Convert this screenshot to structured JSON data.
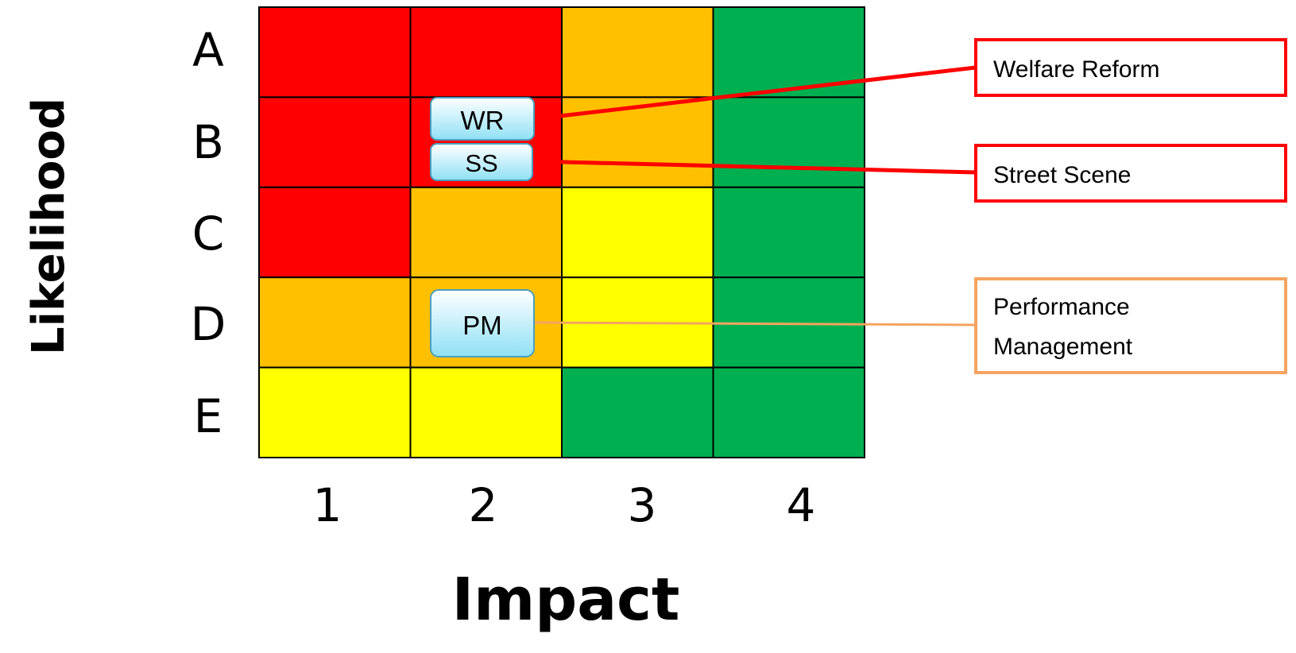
{
  "matrix": {
    "y_axis_title": "Likelihood",
    "x_axis_title": "Impact",
    "rows": [
      "A",
      "B",
      "C",
      "D",
      "E"
    ],
    "columns": [
      "1",
      "2",
      "3",
      "4"
    ],
    "ratings": [
      [
        "red",
        "red",
        "amber",
        "green"
      ],
      [
        "red",
        "red",
        "amber",
        "green"
      ],
      [
        "red",
        "amber",
        "yellow",
        "green"
      ],
      [
        "amber",
        "amber",
        "yellow",
        "green"
      ],
      [
        "yellow",
        "yellow",
        "green",
        "green"
      ]
    ],
    "colors": {
      "red": "#ff0000",
      "amber": "#ffc000",
      "yellow": "#ffff00",
      "green": "#00b050",
      "grid": "#000000"
    }
  },
  "risks": [
    {
      "id": "wr",
      "tag": "WR",
      "name": "Welfare Reform",
      "likelihood": "B",
      "impact": "2",
      "callout_color": "#ff0000"
    },
    {
      "id": "ss",
      "tag": "SS",
      "name": "Street Scene",
      "likelihood": "B",
      "impact": "2",
      "callout_color": "#ff0000"
    },
    {
      "id": "pm",
      "tag": "PM",
      "name": [
        "Performance",
        "Management"
      ],
      "likelihood": "D",
      "impact": "2",
      "callout_color": "#f4a460"
    }
  ]
}
